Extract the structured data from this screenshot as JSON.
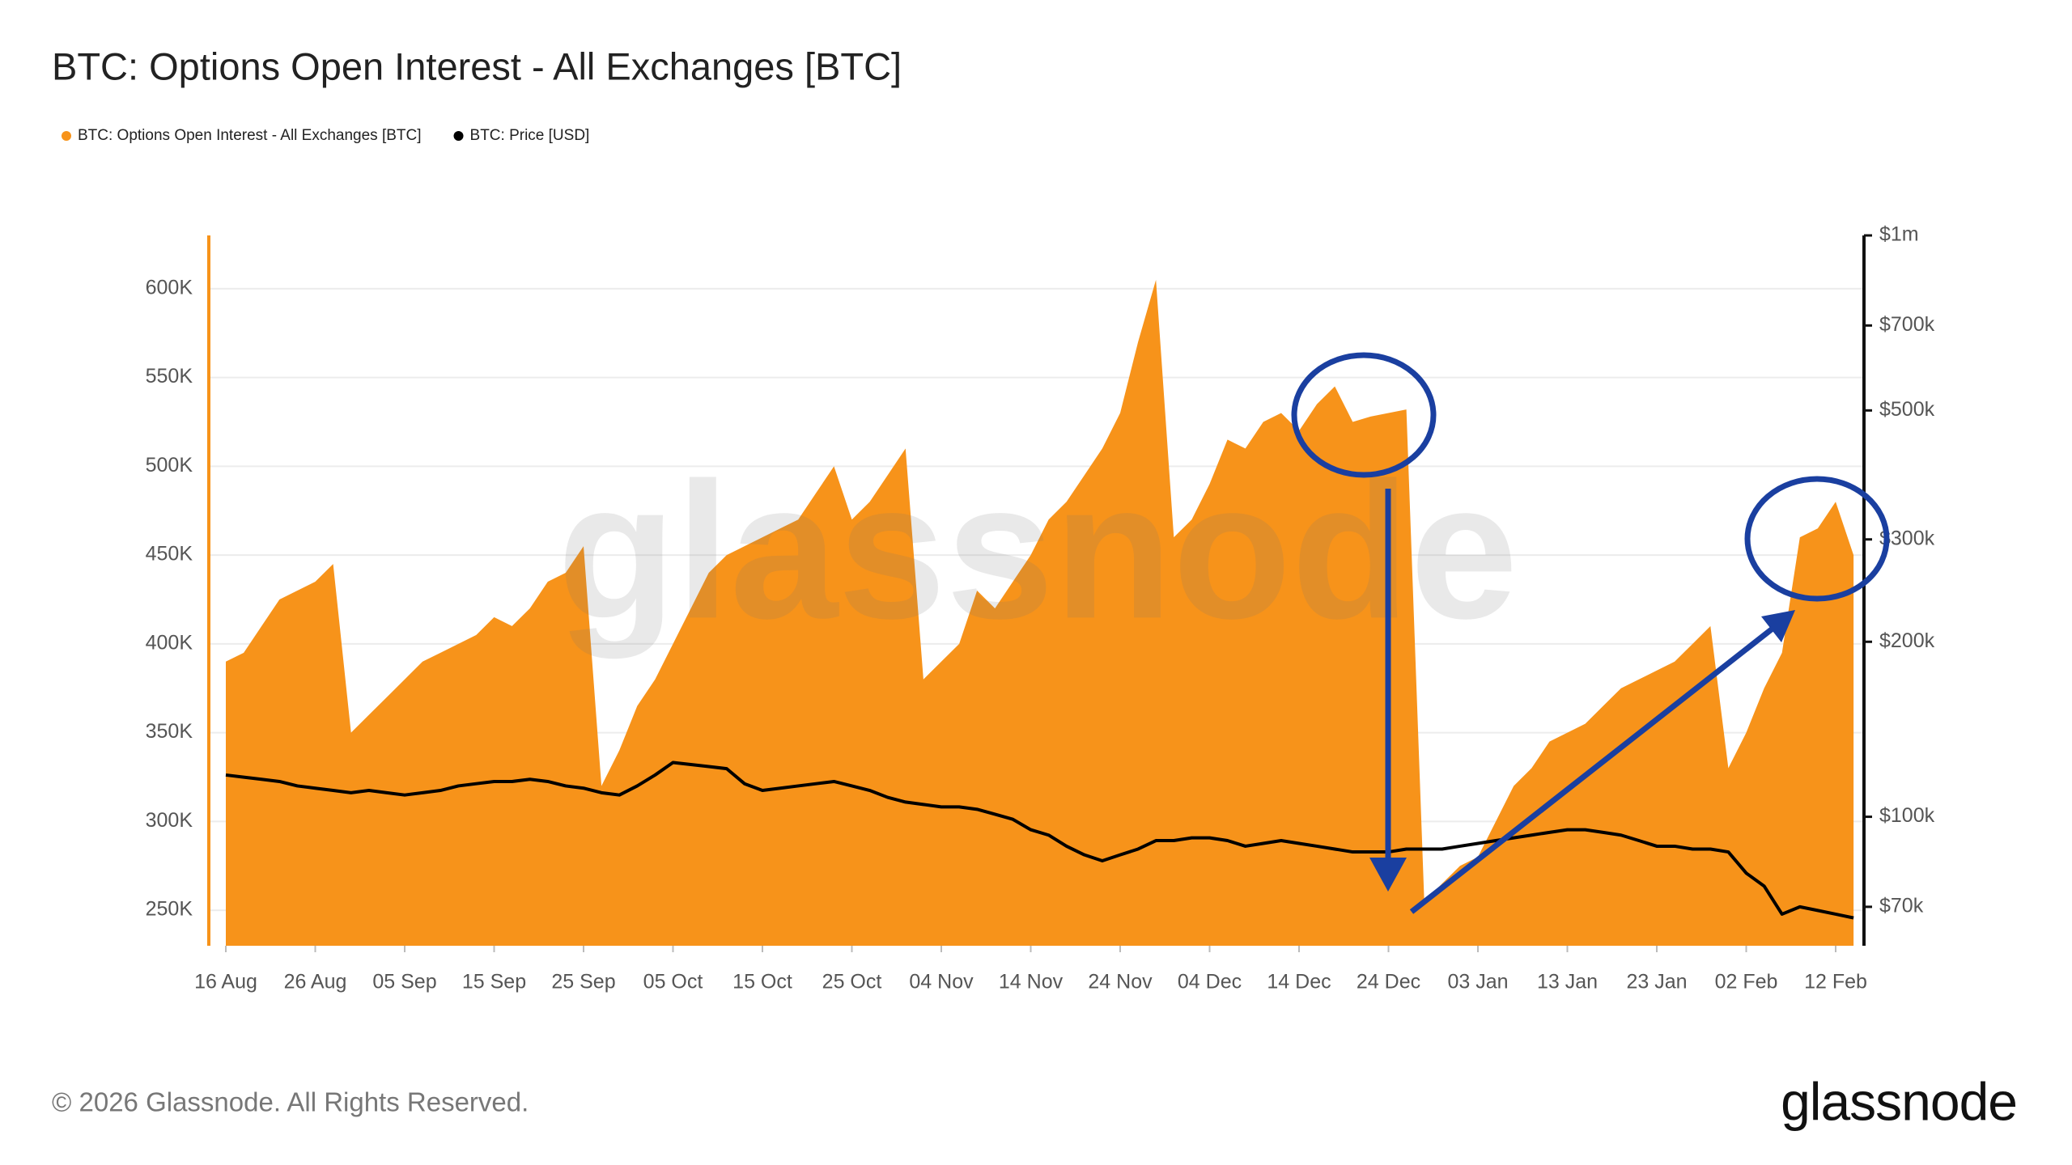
{
  "chart_data": {
    "type": "area-line",
    "title": "BTC: Options Open Interest - All Exchanges [BTC]",
    "watermark": "glassnode",
    "copyright": "© 2026 Glassnode. All Rights Reserved.",
    "logo": "glassnode",
    "x": [
      "16 Aug",
      "18 Aug",
      "20 Aug",
      "22 Aug",
      "24 Aug",
      "26 Aug",
      "28 Aug",
      "30 Aug",
      "01 Sep",
      "03 Sep",
      "05 Sep",
      "07 Sep",
      "09 Sep",
      "11 Sep",
      "13 Sep",
      "15 Sep",
      "17 Sep",
      "19 Sep",
      "21 Sep",
      "23 Sep",
      "25 Sep",
      "27 Sep",
      "29 Sep",
      "01 Oct",
      "03 Oct",
      "05 Oct",
      "07 Oct",
      "09 Oct",
      "11 Oct",
      "13 Oct",
      "15 Oct",
      "17 Oct",
      "19 Oct",
      "21 Oct",
      "23 Oct",
      "25 Oct",
      "27 Oct",
      "29 Oct",
      "31 Oct",
      "02 Nov",
      "04 Nov",
      "06 Nov",
      "08 Nov",
      "10 Nov",
      "12 Nov",
      "14 Nov",
      "16 Nov",
      "18 Nov",
      "20 Nov",
      "22 Nov",
      "24 Nov",
      "26 Nov",
      "28 Nov",
      "30 Nov",
      "02 Dec",
      "04 Dec",
      "06 Dec",
      "08 Dec",
      "10 Dec",
      "12 Dec",
      "14 Dec",
      "16 Dec",
      "18 Dec",
      "20 Dec",
      "22 Dec",
      "24 Dec",
      "26 Dec",
      "28 Dec",
      "30 Dec",
      "01 Jan",
      "03 Jan",
      "05 Jan",
      "07 Jan",
      "09 Jan",
      "11 Jan",
      "13 Jan",
      "15 Jan",
      "17 Jan",
      "19 Jan",
      "21 Jan",
      "23 Jan",
      "25 Jan",
      "27 Jan",
      "29 Jan",
      "31 Jan",
      "02 Feb",
      "04 Feb",
      "06 Feb",
      "08 Feb",
      "10 Feb",
      "12 Feb",
      "14 Feb"
    ],
    "xticks": [
      "16 Aug",
      "26 Aug",
      "05 Sep",
      "15 Sep",
      "25 Sep",
      "05 Oct",
      "15 Oct",
      "25 Oct",
      "04 Nov",
      "14 Nov",
      "24 Nov",
      "04 Dec",
      "14 Dec",
      "24 Dec",
      "03 Jan",
      "13 Jan",
      "23 Jan",
      "02 Feb",
      "12 Feb"
    ],
    "series": [
      {
        "name": "BTC: Options Open Interest - All Exchanges [BTC]",
        "color": "#f7931a",
        "kind": "area",
        "values": [
          390000,
          395000,
          410000,
          425000,
          430000,
          435000,
          445000,
          350000,
          360000,
          370000,
          380000,
          390000,
          395000,
          400000,
          405000,
          415000,
          410000,
          420000,
          435000,
          440000,
          455000,
          320000,
          340000,
          365000,
          380000,
          400000,
          420000,
          440000,
          450000,
          455000,
          460000,
          465000,
          470000,
          485000,
          500000,
          470000,
          480000,
          495000,
          510000,
          380000,
          390000,
          400000,
          430000,
          420000,
          435000,
          450000,
          470000,
          480000,
          495000,
          510000,
          530000,
          570000,
          605000,
          460000,
          470000,
          490000,
          515000,
          510000,
          525000,
          530000,
          520000,
          535000,
          545000,
          525000,
          528000,
          530000,
          532000,
          255000,
          265000,
          275000,
          280000,
          300000,
          320000,
          330000,
          345000,
          350000,
          355000,
          365000,
          375000,
          380000,
          385000,
          390000,
          400000,
          410000,
          330000,
          350000,
          375000,
          395000,
          460000,
          465000,
          480000,
          450000
        ]
      },
      {
        "name": "BTC: Price [USD]",
        "color": "#000000",
        "kind": "line",
        "axis": "y2",
        "values": [
          118000,
          117000,
          116000,
          115000,
          113000,
          112000,
          111000,
          110000,
          111000,
          110000,
          109000,
          110000,
          111000,
          113000,
          114000,
          115000,
          115000,
          116000,
          115000,
          113000,
          112000,
          110000,
          109000,
          113000,
          118000,
          124000,
          123000,
          122000,
          121000,
          114000,
          111000,
          112000,
          113000,
          114000,
          115000,
          113000,
          111000,
          108000,
          106000,
          105000,
          104000,
          104000,
          103000,
          101000,
          99000,
          95000,
          93000,
          89000,
          86000,
          84000,
          86000,
          88000,
          91000,
          91000,
          92000,
          92000,
          91000,
          89000,
          90000,
          91000,
          90000,
          89000,
          88000,
          87000,
          87000,
          87000,
          88000,
          88000,
          88000,
          89000,
          90000,
          91000,
          92000,
          93000,
          94000,
          95000,
          95000,
          94000,
          93000,
          91000,
          89000,
          89000,
          88000,
          88000,
          87000,
          80000,
          76000,
          68000,
          70000,
          69000,
          68000,
          67000
        ]
      }
    ],
    "ylim": [
      230000,
      630000
    ],
    "yticks": [
      {
        "value": 250000,
        "label": "250K"
      },
      {
        "value": 300000,
        "label": "300K"
      },
      {
        "value": 350000,
        "label": "350K"
      },
      {
        "value": 400000,
        "label": "400K"
      },
      {
        "value": 450000,
        "label": "450K"
      },
      {
        "value": 500000,
        "label": "500K"
      },
      {
        "value": 550000,
        "label": "550K"
      },
      {
        "value": 600000,
        "label": "600K"
      }
    ],
    "y2lim": [
      60000,
      1000000
    ],
    "y2_scale": "log",
    "y2ticks": [
      {
        "value": 70000,
        "label": "$70k"
      },
      {
        "value": 100000,
        "label": "$100k"
      },
      {
        "value": 200000,
        "label": "$200k"
      },
      {
        "value": 300000,
        "label": "$300k"
      },
      {
        "value": 500000,
        "label": "$500k"
      },
      {
        "value": 700000,
        "label": "$700k"
      },
      {
        "value": 1000000,
        "label": "$1m"
      }
    ],
    "grid": true
  }
}
